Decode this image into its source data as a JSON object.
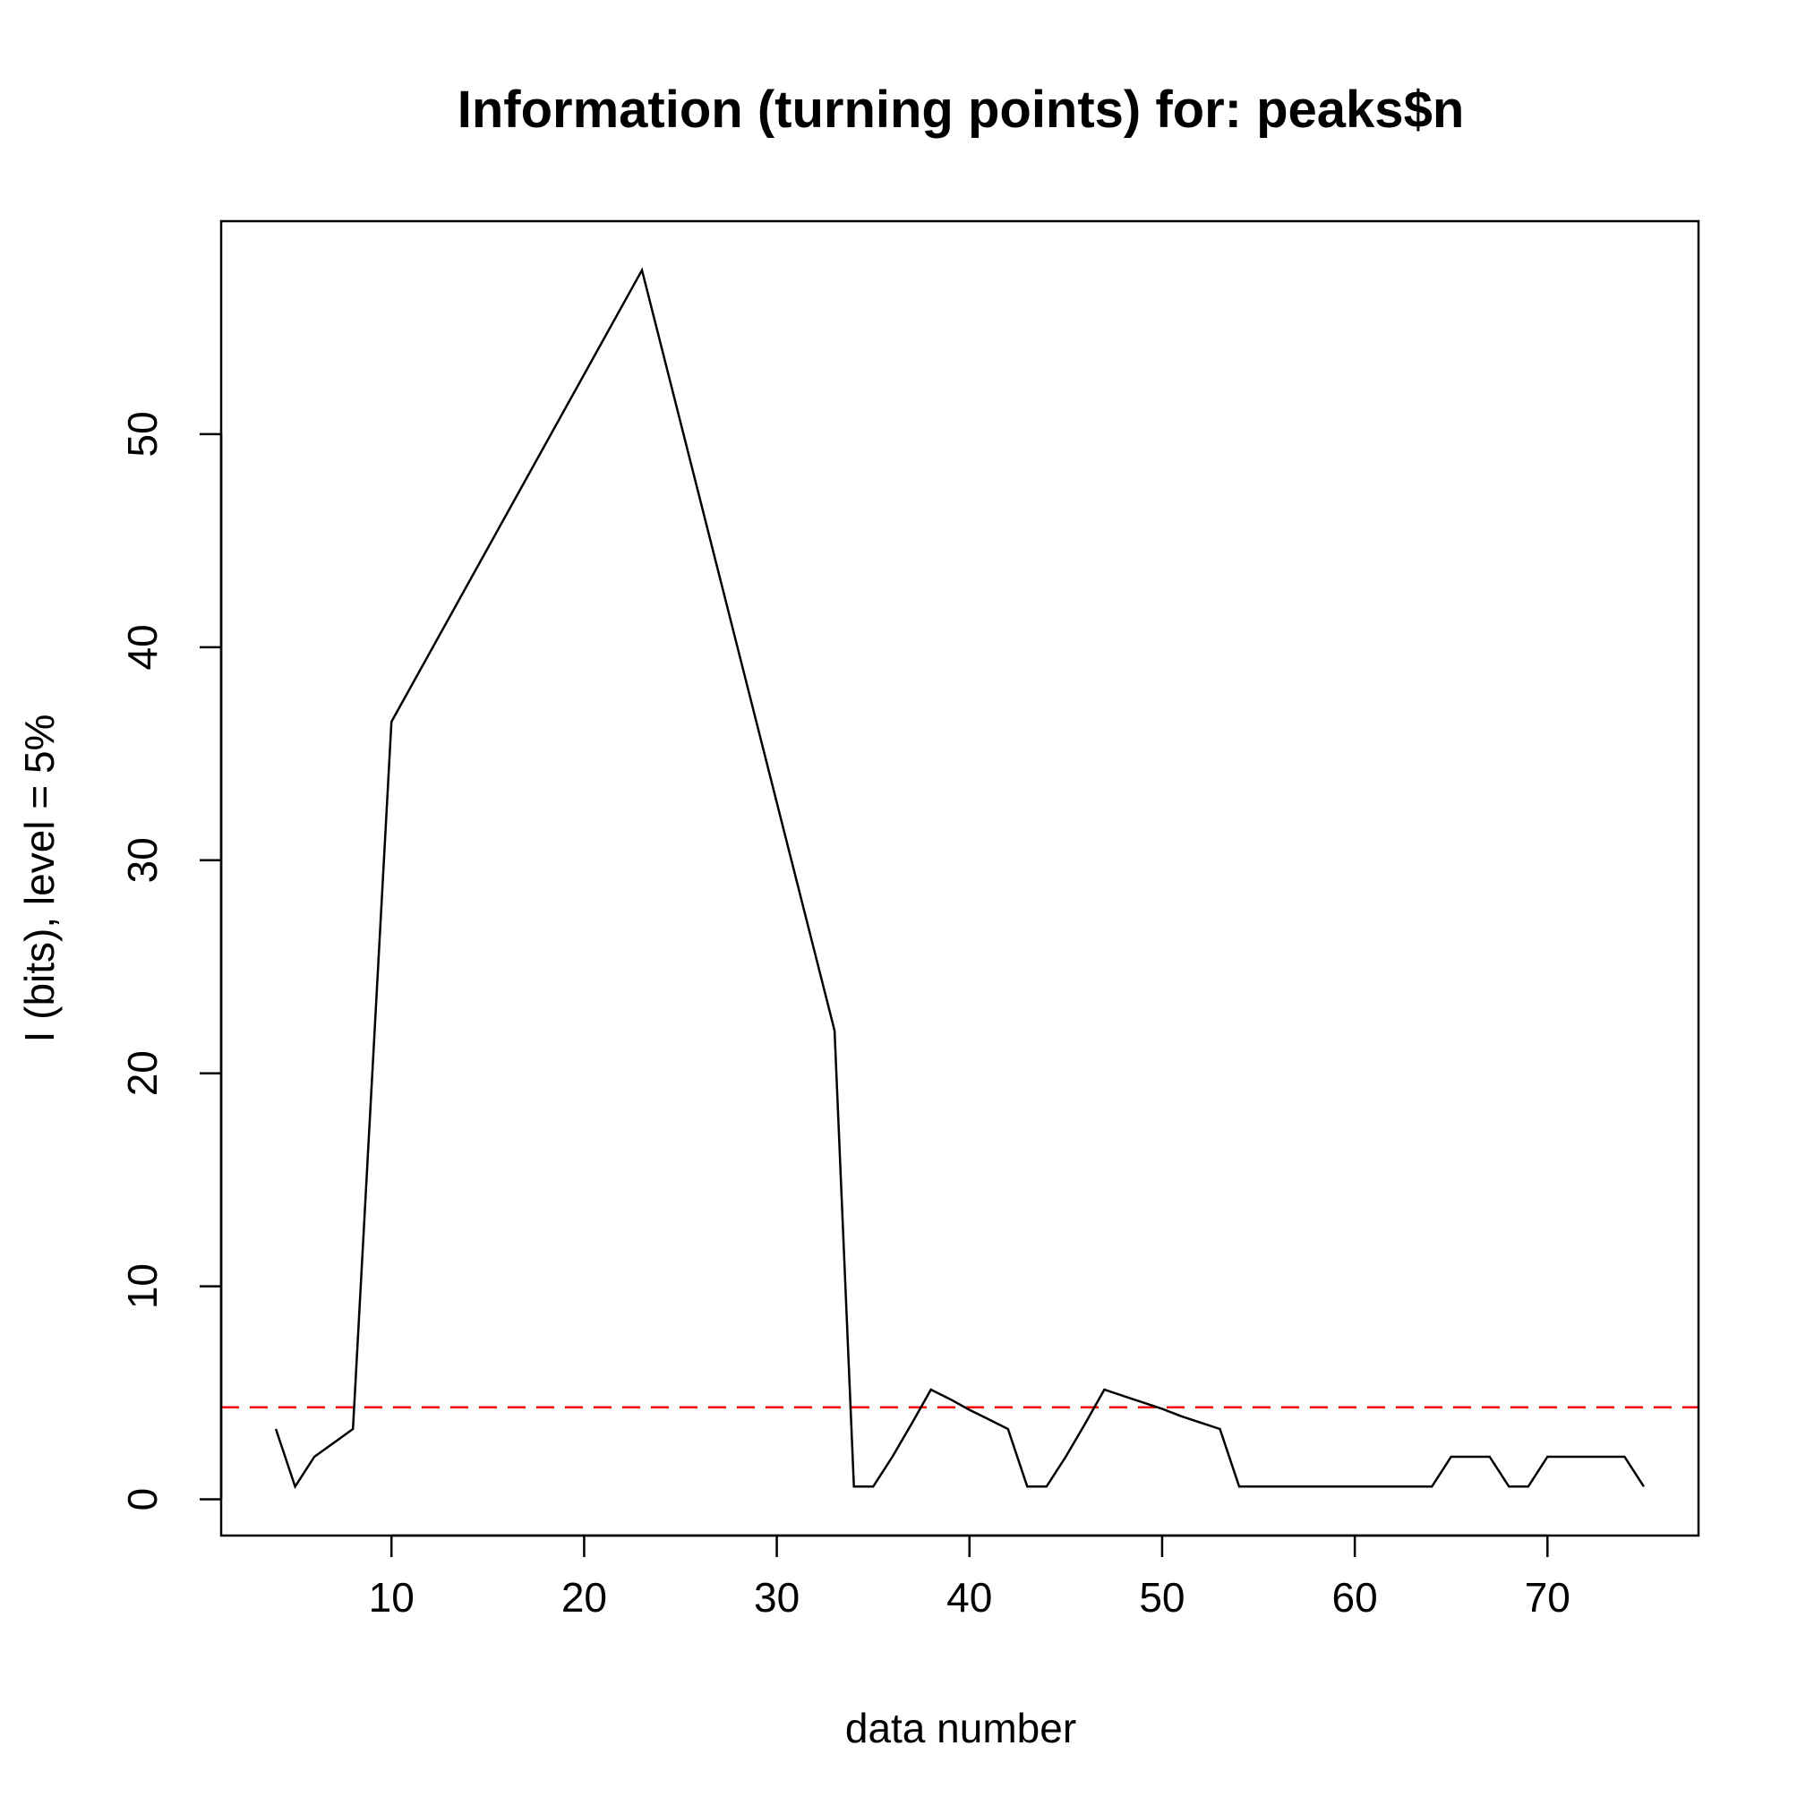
{
  "chart_data": {
    "type": "line",
    "title": "Information (turning points) for: peaks$n",
    "xlabel": "data number",
    "ylabel": "I (bits), level = 5%",
    "xlim": [
      1.16,
      77.84
    ],
    "ylim": [
      -1.7,
      60
    ],
    "x_ticks": [
      10,
      20,
      30,
      40,
      50,
      60,
      70
    ],
    "y_ticks": [
      0,
      10,
      20,
      30,
      40,
      50
    ],
    "grid": false,
    "legend": "none",
    "series": [
      {
        "color": "#000000",
        "x": [
          4,
          5,
          6,
          7,
          8,
          10,
          23,
          33,
          34,
          35,
          36,
          37,
          38,
          39,
          40,
          41,
          42,
          43,
          44,
          45,
          46,
          47,
          48,
          49,
          50,
          51,
          52,
          53,
          54,
          55,
          56,
          57,
          58,
          59,
          60,
          61,
          62,
          63,
          64,
          65,
          66,
          67,
          68,
          69,
          70,
          71,
          72,
          73,
          74,
          75
        ],
        "y": [
          3.3,
          0.6,
          2.0,
          2.65,
          3.3,
          36.5,
          57.7,
          22.0,
          0.6,
          0.6,
          2.0,
          3.55,
          5.15,
          4.7,
          4.2,
          3.75,
          3.3,
          0.6,
          0.6,
          2.0,
          3.55,
          5.15,
          4.85,
          4.55,
          4.25,
          3.9,
          3.6,
          3.3,
          0.6,
          0.6,
          0.6,
          0.6,
          0.6,
          0.6,
          0.6,
          0.6,
          0.6,
          0.6,
          0.6,
          2.0,
          2.0,
          2.0,
          0.6,
          0.6,
          2.0,
          2.0,
          2.0,
          2.0,
          2.0,
          0.6
        ]
      }
    ],
    "reference_line": {
      "orientation": "horizontal",
      "y": 4.32,
      "style": "dashed",
      "color": "#ff0000"
    }
  }
}
